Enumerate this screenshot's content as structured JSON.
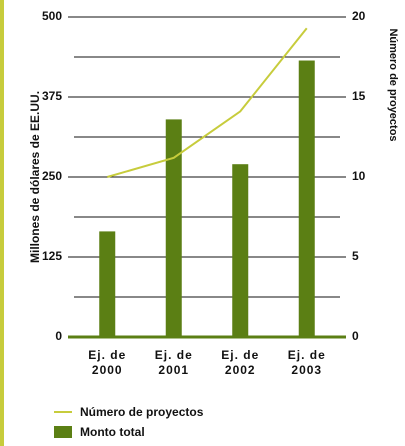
{
  "chart_data": {
    "type": "bar_line",
    "categories": [
      "Ej. de\n2000",
      "Ej. de\n2001",
      "Ej. de\n2002",
      "Ej. de\n2003"
    ],
    "series": [
      {
        "name": "Monto total",
        "color": "#5b7f14",
        "type": "bar",
        "values": [
          165,
          340,
          270,
          432
        ]
      },
      {
        "name": "Número de proyectos",
        "color": "#c7cc3c",
        "type": "line",
        "axis": "y2",
        "values": [
          10,
          11.2,
          14.1,
          19.3
        ]
      }
    ],
    "ylabel": "Millones de dólares de EE.UU.",
    "y2label": "Número de proyectos",
    "ylim": [
      0,
      500
    ],
    "yticks": [
      0,
      125,
      250,
      375,
      500
    ],
    "minor_yticks": [
      62.5,
      187.5,
      312.5,
      437.5
    ],
    "y2lim": [
      0,
      20
    ],
    "y2ticks": [
      0,
      5,
      10,
      15,
      20
    ],
    "grid": true
  }
}
